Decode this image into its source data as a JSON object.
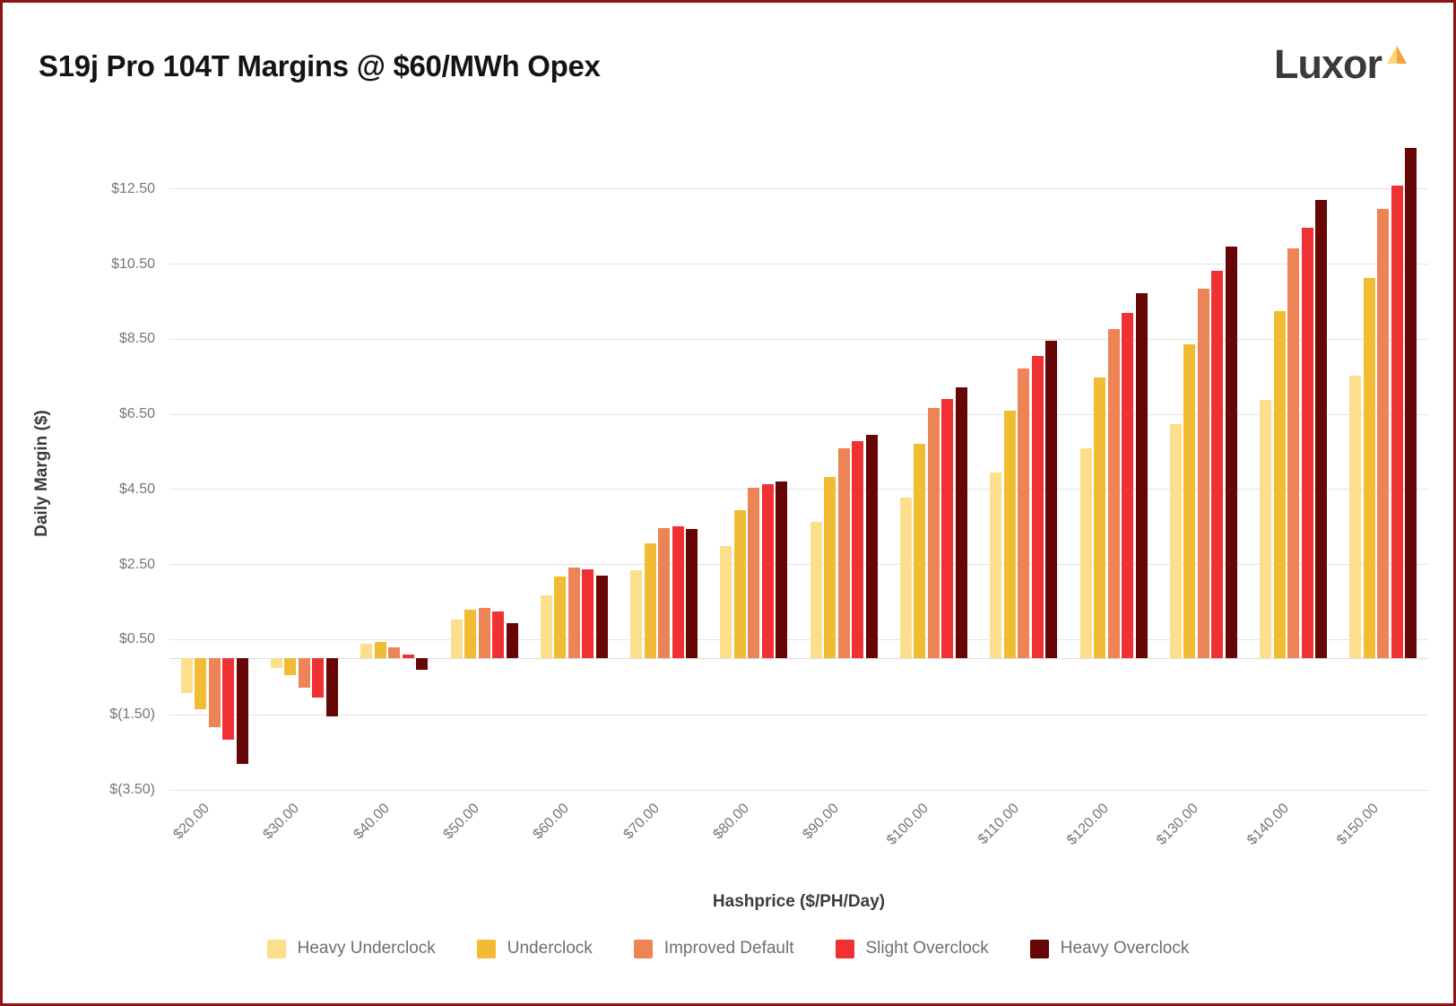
{
  "branding": {
    "logo_text": "Luxor",
    "logo_mark": "triangle-icon"
  },
  "chart_data": {
    "type": "bar",
    "title": "S19j Pro 104T Margins @ $60/MWh Opex",
    "xlabel": "Hashprice ($/PH/Day)",
    "ylabel": "Daily Margin ($)",
    "categories": [
      "$20.00",
      "$30.00",
      "$40.00",
      "$50.00",
      "$60.00",
      "$70.00",
      "$80.00",
      "$90.00",
      "$100.00",
      "$110.00",
      "$120.00",
      "$130.00",
      "$140.00",
      "$150.00"
    ],
    "series": [
      {
        "name": "Heavy Underclock",
        "color": "#FCDF8D",
        "values": [
          -0.91,
          -0.26,
          0.39,
          1.04,
          1.69,
          2.34,
          2.99,
          3.64,
          4.29,
          4.94,
          5.59,
          6.24,
          6.89,
          7.54
        ]
      },
      {
        "name": "Underclock",
        "color": "#F1BC34",
        "values": [
          -1.34,
          -0.45,
          0.43,
          1.31,
          2.19,
          3.07,
          3.96,
          4.84,
          5.72,
          6.6,
          7.48,
          8.37,
          9.25,
          10.13
        ]
      },
      {
        "name": "Improved Default",
        "color": "#EC8456",
        "values": [
          -1.84,
          -0.77,
          0.29,
          1.35,
          2.41,
          3.47,
          4.54,
          5.6,
          6.66,
          7.72,
          8.78,
          9.85,
          10.91,
          11.97
        ]
      },
      {
        "name": "Slight Overclock",
        "color": "#EF3134",
        "values": [
          -2.16,
          -1.03,
          0.11,
          1.24,
          2.38,
          3.51,
          4.65,
          5.78,
          6.92,
          8.05,
          9.19,
          10.32,
          11.46,
          12.59
        ]
      },
      {
        "name": "Heavy Overclock",
        "color": "#660606",
        "values": [
          -2.8,
          -1.55,
          -0.3,
          0.95,
          2.2,
          3.45,
          4.71,
          5.96,
          7.21,
          8.46,
          9.72,
          10.97,
          12.22,
          13.6
        ]
      }
    ],
    "y_ticks": {
      "labels": [
        "$12.50",
        "$10.50",
        "$8.50",
        "$6.50",
        "$4.50",
        "$2.50",
        "$0.50",
        "$(1.50)",
        "$(3.50)"
      ],
      "values": [
        12.5,
        10.5,
        8.5,
        6.5,
        4.5,
        2.5,
        0.5,
        -1.5,
        -3.5
      ]
    },
    "ylim_render": [
      -3.5,
      14.0
    ],
    "grid": true,
    "legend_position": "bottom"
  },
  "colors": {
    "frame_border": "#8E1313",
    "grid_line": "#E4E4E4",
    "axis_text": "#767676",
    "axis_title_text": "#3C3C3C",
    "title_text": "#141414",
    "logo_text": "#3A3A3A",
    "logo_mark_light": "#FBD579",
    "logo_mark_dark": "#F2A33C",
    "background": "#FFFFFF"
  }
}
